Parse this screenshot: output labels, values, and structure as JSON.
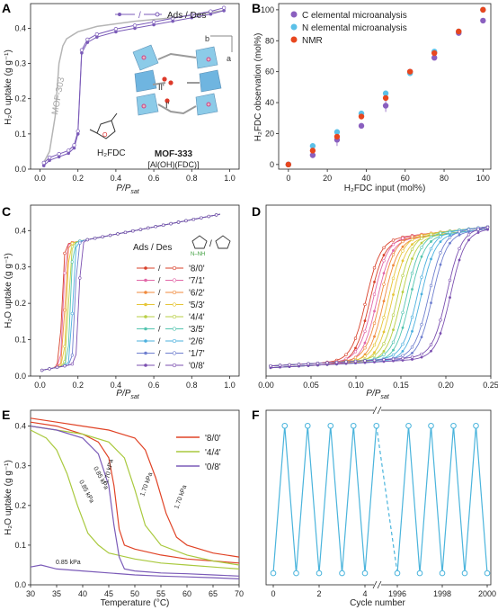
{
  "panels": {
    "A": {
      "label": "A",
      "ylabel": "H₂O uptake (g g⁻¹)",
      "xlabel": "P/P",
      "xlabel_sub": "sat",
      "legend": "Ads / Des",
      "mof303_label": "MOF-303",
      "linker_label": "H₂FDC",
      "framework_name": "MOF-333",
      "framework_formula": "[Al(OH)(FDC)]",
      "site_labels": [
        "II'",
        "I'"
      ],
      "axis_letters": [
        "b",
        "a"
      ]
    },
    "B": {
      "label": "B",
      "ylabel": "H₂FDC observation (mol%)",
      "xlabel": "H₂FDC input (mol%)"
    },
    "C": {
      "label": "C",
      "ylabel": "H₂O uptake (g g⁻¹)",
      "xlabel": "P/P",
      "xlabel_sub": "sat",
      "legend_title": "Ads / Des",
      "legend_linker_label": "N–NH"
    },
    "D": {
      "label": "D",
      "xlabel": "P/P",
      "xlabel_sub": "sat"
    },
    "E": {
      "label": "E",
      "ylabel": "H₂O uptake (g g⁻¹)",
      "xlabel": "Temperature (°C)",
      "annotations": [
        "0.85 kPa",
        "1.70 kPa",
        "0.85 kPa",
        "1.70 kPa",
        "1.70 kPa",
        "0.85 kPa"
      ]
    },
    "F": {
      "label": "F",
      "xlabel": "Cycle number"
    }
  },
  "chart_data": [
    {
      "panel": "A",
      "type": "line",
      "xlabel": "P/Psat",
      "ylabel": "H2O uptake (g g-1)",
      "xlim": [
        -0.05,
        1.05
      ],
      "ylim": [
        0,
        0.47
      ],
      "xticks": [
        "0.0",
        "0.2",
        "0.4",
        "0.6",
        "0.8",
        "1.0"
      ],
      "yticks": [
        "0.0",
        "0.1",
        "0.2",
        "0.3",
        "0.4"
      ],
      "series": [
        {
          "name": "Ads / Des",
          "color": "#7b5bb8",
          "x": [
            0.02,
            0.05,
            0.1,
            0.15,
            0.18,
            0.2,
            0.22,
            0.25,
            0.3,
            0.4,
            0.5,
            0.6,
            0.7,
            0.8,
            0.9,
            0.97
          ],
          "y": [
            0.01,
            0.025,
            0.035,
            0.045,
            0.06,
            0.1,
            0.33,
            0.36,
            0.375,
            0.39,
            0.4,
            0.41,
            0.42,
            0.43,
            0.44,
            0.45
          ]
        },
        {
          "name": "MOF-303",
          "color": "#b5b5b5",
          "x": [
            0.02,
            0.05,
            0.08,
            0.1,
            0.12,
            0.14,
            0.17,
            0.2,
            0.3,
            0.5,
            0.7,
            0.97
          ],
          "y": [
            0.02,
            0.05,
            0.15,
            0.3,
            0.35,
            0.37,
            0.38,
            0.39,
            0.405,
            0.42,
            0.43,
            0.45
          ]
        }
      ]
    },
    {
      "panel": "B",
      "type": "scatter",
      "xlabel": "H2FDC input (mol%)",
      "ylabel": "H2FDC observation (mol%)",
      "xlim": [
        -5,
        104
      ],
      "ylim": [
        -3,
        104
      ],
      "xticks": [
        "0",
        "20",
        "40",
        "60",
        "80",
        "100"
      ],
      "yticks": [
        "0",
        "20",
        "40",
        "60",
        "80",
        "100"
      ],
      "x": [
        0,
        12.5,
        25,
        37.5,
        50,
        62.5,
        75,
        87.5,
        100
      ],
      "series": [
        {
          "name": "C elemental microanalysis",
          "color": "#8a5fbf",
          "values": [
            0,
            6,
            16,
            25,
            38,
            60,
            69,
            85,
            93
          ]
        },
        {
          "name": "N elemental microanalysis",
          "color": "#5bc0e8",
          "values": [
            0,
            12,
            21,
            33,
            46,
            59,
            73,
            86,
            100
          ]
        },
        {
          "name": "NMR",
          "color": "#e8461e",
          "values": [
            0,
            9,
            18,
            31,
            43,
            60,
            72,
            86,
            100
          ]
        }
      ],
      "legend_position": "top-left"
    },
    {
      "panel": "C",
      "type": "line",
      "xlabel": "P/Psat",
      "ylabel": "H2O uptake (g g-1)",
      "xlim": [
        -0.05,
        1.05
      ],
      "ylim": [
        0,
        0.47
      ],
      "xticks": [
        "0.0",
        "0.2",
        "0.4",
        "0.6",
        "0.8",
        "1.0"
      ],
      "yticks": [
        "0.0",
        "0.1",
        "0.2",
        "0.3",
        "0.4"
      ],
      "series_names": [
        "'8/0'",
        "'7/1'",
        "'6/2'",
        "'5/3'",
        "'4/4'",
        "'3/5'",
        "'2/6'",
        "'1/7'",
        "'0/8'"
      ],
      "series_colors": [
        "#d8402a",
        "#e268a8",
        "#f08a3c",
        "#e6c63a",
        "#b8cf45",
        "#54c5b0",
        "#4cb0de",
        "#6f7fcf",
        "#7b4fb0"
      ],
      "step_positions": [
        0.115,
        0.123,
        0.131,
        0.14,
        0.15,
        0.16,
        0.172,
        0.185,
        0.205
      ],
      "legend_position": "center-right"
    },
    {
      "panel": "D",
      "type": "line",
      "xlabel": "P/Psat",
      "xlim": [
        0,
        0.25
      ],
      "ylim": [
        0,
        0.42
      ],
      "xticks": [
        "0.00",
        "0.05",
        "0.10",
        "0.15",
        "0.20",
        "0.25"
      ],
      "series_names": [
        "'8/0'",
        "'7/1'",
        "'6/2'",
        "'5/3'",
        "'4/4'",
        "'3/5'",
        "'2/6'",
        "'1/7'",
        "'0/8'"
      ],
      "step_positions": [
        0.115,
        0.123,
        0.131,
        0.14,
        0.15,
        0.16,
        0.172,
        0.185,
        0.205
      ]
    },
    {
      "panel": "E",
      "type": "line",
      "xlabel": "Temperature (°C)",
      "ylabel": "H2O uptake (g g-1)",
      "xlim": [
        30,
        70
      ],
      "ylim": [
        0,
        0.44
      ],
      "xticks": [
        "30",
        "35",
        "40",
        "45",
        "50",
        "55",
        "60",
        "65",
        "70"
      ],
      "series": [
        {
          "name": "'8/0' 0.85 kPa",
          "color": "#e04326",
          "x": [
            30,
            35,
            40,
            43,
            45,
            46,
            47,
            48,
            50,
            55,
            60,
            65,
            70
          ],
          "y": [
            0.41,
            0.4,
            0.38,
            0.36,
            0.32,
            0.25,
            0.14,
            0.1,
            0.09,
            0.075,
            0.065,
            0.06,
            0.055
          ]
        },
        {
          "name": "'8/0' 1.70 kPa",
          "color": "#e04326",
          "x": [
            30,
            35,
            40,
            45,
            50,
            52,
            54,
            56,
            58,
            60,
            65,
            70
          ],
          "y": [
            0.42,
            0.41,
            0.4,
            0.39,
            0.37,
            0.34,
            0.27,
            0.18,
            0.12,
            0.1,
            0.08,
            0.07
          ]
        },
        {
          "name": "'4/4' 0.85 kPa",
          "color": "#a9c93e",
          "x": [
            30,
            33,
            35,
            37,
            39,
            41,
            43,
            45,
            50,
            55,
            60,
            65,
            70
          ],
          "y": [
            0.39,
            0.37,
            0.34,
            0.28,
            0.2,
            0.13,
            0.1,
            0.08,
            0.065,
            0.055,
            0.05,
            0.045,
            0.04
          ]
        },
        {
          "name": "'4/4' 1.70 kPa",
          "color": "#a9c93e",
          "x": [
            30,
            35,
            40,
            45,
            48,
            50,
            52,
            55,
            60,
            65,
            70
          ],
          "y": [
            0.4,
            0.39,
            0.38,
            0.36,
            0.32,
            0.24,
            0.15,
            0.1,
            0.075,
            0.06,
            0.05
          ]
        },
        {
          "name": "'0/8' 0.85 kPa",
          "color": "#7b5bb8",
          "x": [
            30,
            32,
            35,
            40,
            45,
            50,
            55,
            60,
            65,
            70
          ],
          "y": [
            0.045,
            0.05,
            0.04,
            0.035,
            0.03,
            0.025,
            0.022,
            0.02,
            0.018,
            0.015
          ]
        },
        {
          "name": "'0/8' 1.70 kPa",
          "color": "#7b5bb8",
          "x": [
            30,
            35,
            40,
            43,
            45,
            46,
            47,
            48,
            50,
            55,
            60,
            65,
            70
          ],
          "y": [
            0.4,
            0.39,
            0.37,
            0.33,
            0.25,
            0.15,
            0.07,
            0.04,
            0.035,
            0.03,
            0.028,
            0.025,
            0.022
          ]
        }
      ],
      "legend": [
        "'8/0'",
        "'4/4'",
        "'0/8'"
      ],
      "legend_position": "top-right"
    },
    {
      "panel": "F",
      "type": "line",
      "xlabel": "Cycle number",
      "xticks": [
        "0",
        "2",
        "4",
        "1996",
        "1998",
        "2000"
      ],
      "color": "#4ab4dc",
      "cycles_left": [
        0,
        0.5,
        1,
        1.5,
        2,
        2.5,
        3,
        3.5,
        4,
        4.5
      ],
      "cycles_right": [
        1996,
        1996.5,
        1997,
        1997.5,
        1998,
        1998.5,
        1999,
        1999.5,
        2000
      ],
      "levels": {
        "high": 0.41,
        "low": 0.03
      }
    }
  ]
}
